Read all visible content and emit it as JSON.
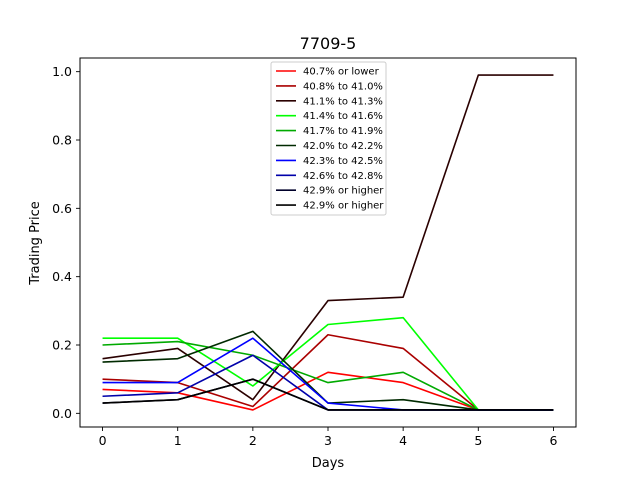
{
  "chart_data": {
    "type": "line",
    "title": "7709-5",
    "xlabel": "Days",
    "ylabel": "Trading Price",
    "x": [
      0,
      1,
      2,
      3,
      4,
      5,
      6
    ],
    "xlim": [
      -0.3,
      6.3
    ],
    "ylim": [
      -0.04,
      1.04
    ],
    "xticks": [
      "0",
      "1",
      "2",
      "3",
      "4",
      "5",
      "6"
    ],
    "yticks": [
      "0.0",
      "0.2",
      "0.4",
      "0.6",
      "0.8",
      "1.0"
    ],
    "grid": false,
    "legend_position": "top-center",
    "series": [
      {
        "name": "40.7% or lower",
        "color": "#ff0000",
        "values": [
          0.07,
          0.06,
          0.01,
          0.12,
          0.09,
          0.01,
          0.01
        ]
      },
      {
        "name": "40.8% to 41.0%",
        "color": "#aa0000",
        "values": [
          0.1,
          0.09,
          0.02,
          0.23,
          0.19,
          0.01,
          0.01
        ]
      },
      {
        "name": "41.1% to 41.3%",
        "color": "#2a0000",
        "values": [
          0.16,
          0.19,
          0.04,
          0.33,
          0.34,
          0.99,
          0.99
        ]
      },
      {
        "name": "41.4% to 41.6%",
        "color": "#00ff00",
        "values": [
          0.22,
          0.22,
          0.08,
          0.26,
          0.28,
          0.01,
          0.01
        ]
      },
      {
        "name": "41.7% to 41.9%",
        "color": "#00aa00",
        "values": [
          0.2,
          0.21,
          0.17,
          0.09,
          0.12,
          0.01,
          0.01
        ]
      },
      {
        "name": "42.0% to 42.2%",
        "color": "#002a00",
        "values": [
          0.15,
          0.16,
          0.24,
          0.03,
          0.04,
          0.01,
          0.01
        ]
      },
      {
        "name": "42.3% to 42.5%",
        "color": "#0000ff",
        "values": [
          0.09,
          0.09,
          0.22,
          0.03,
          0.01,
          0.01,
          0.01
        ]
      },
      {
        "name": "42.6% to 42.8%",
        "color": "#0000aa",
        "values": [
          0.05,
          0.06,
          0.17,
          0.01,
          0.01,
          0.01,
          0.01
        ]
      },
      {
        "name": "42.9% or higher",
        "color": "#00002a",
        "values": [
          0.03,
          0.04,
          0.1,
          0.01,
          0.01,
          0.01,
          0.01
        ]
      },
      {
        "name": "42.9% or higher",
        "color": "#000000",
        "values": [
          0.03,
          0.04,
          0.1,
          0.01,
          0.01,
          0.01,
          0.01
        ]
      }
    ]
  }
}
